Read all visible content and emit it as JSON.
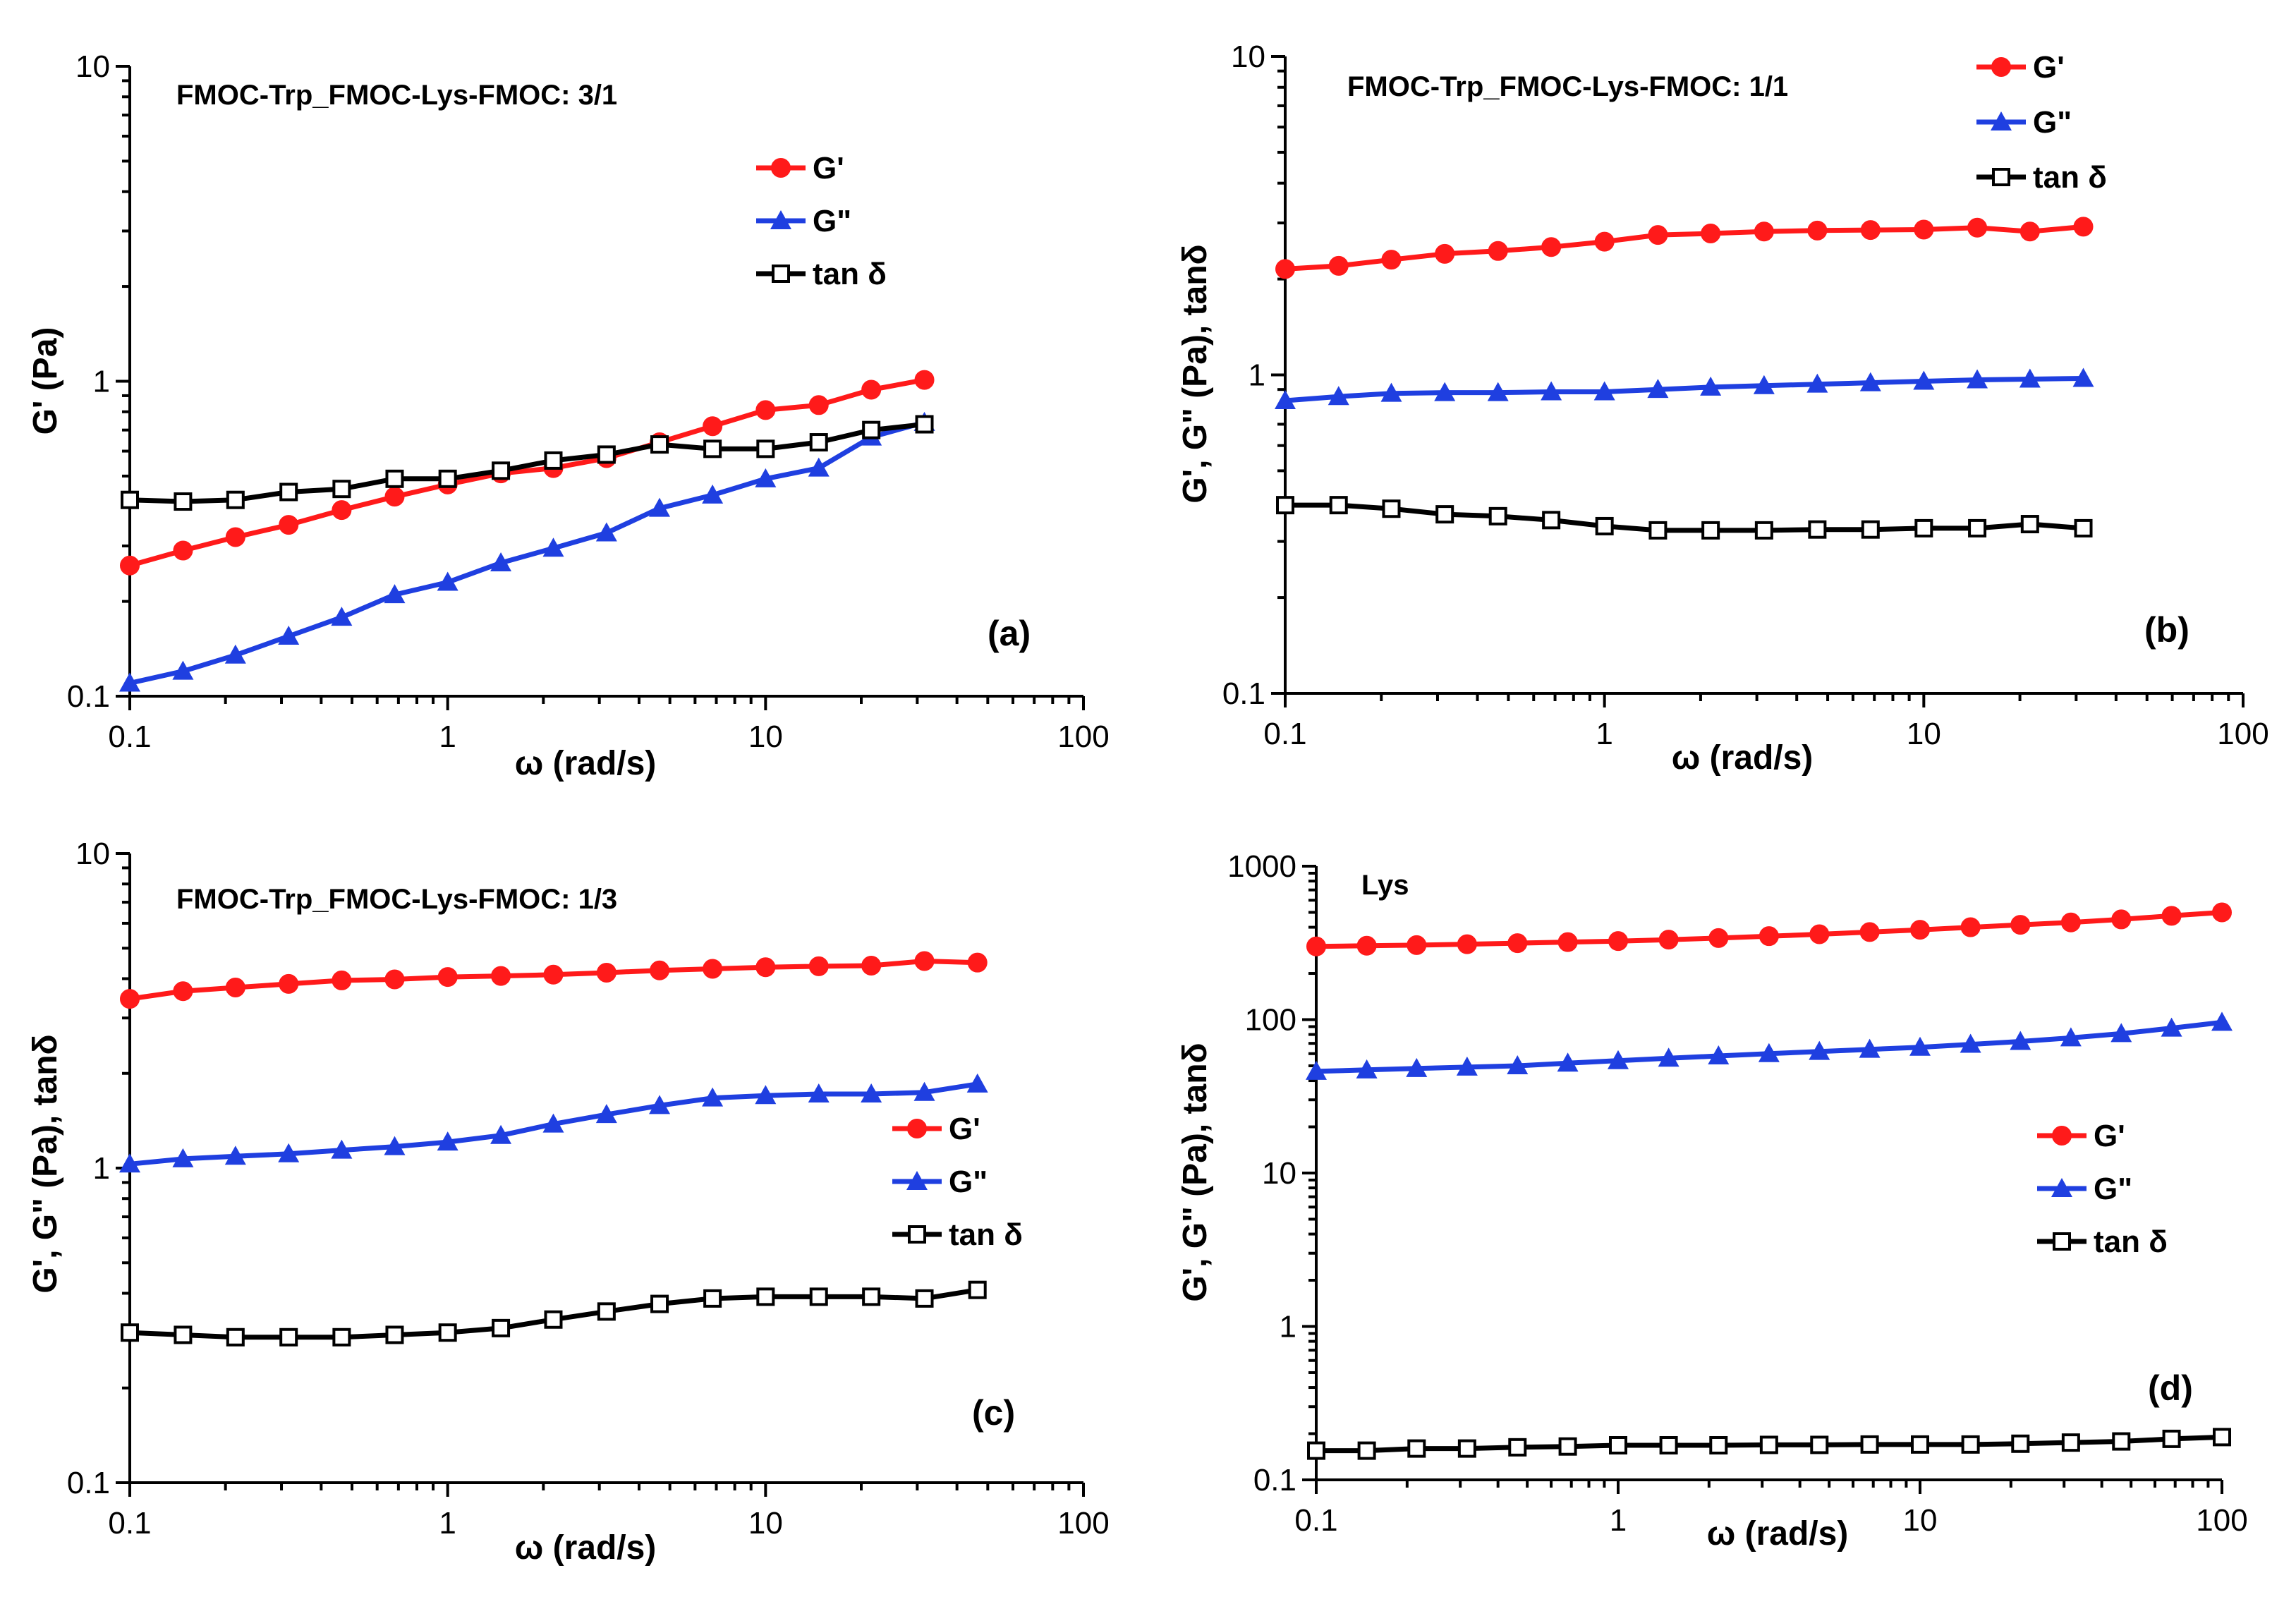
{
  "colors": {
    "g_prime": "#ff1a1a",
    "g_double_prime": "#1f3fe0",
    "tan_delta": "#000000"
  },
  "icons": {
    "g_prime": "filled-circle-marker",
    "g_double_prime": "filled-triangle-marker",
    "tan_delta": "open-square-marker"
  },
  "chart_data": [
    {
      "type": "line",
      "panel_label": "(a)",
      "title": "FMOC-Trp_FMOC-Lys-FMOC:  3/1",
      "xlabel": "ω (rad/s)",
      "ylabel": "G' (Pa)",
      "xscale": "log",
      "yscale": "log",
      "xlim": [
        0.1,
        100
      ],
      "ylim": [
        0.1,
        10
      ],
      "xticks": [
        "0.1",
        "1",
        "10",
        "100"
      ],
      "yticks": [
        "0.1",
        "1",
        "10"
      ],
      "legend_position": "top-right",
      "x": [
        0.1,
        0.147,
        0.215,
        0.316,
        0.464,
        0.681,
        1.0,
        1.47,
        2.15,
        3.16,
        4.64,
        6.81,
        10.0,
        14.7,
        21.5,
        31.6
      ],
      "series": [
        {
          "name": "G'",
          "marker": "circle",
          "values": [
            0.26,
            0.29,
            0.32,
            0.35,
            0.39,
            0.43,
            0.47,
            0.51,
            0.53,
            0.57,
            0.64,
            0.72,
            0.81,
            0.84,
            0.94,
            1.01
          ]
        },
        {
          "name": "G\"",
          "marker": "triangle",
          "values": [
            0.11,
            0.12,
            0.135,
            0.155,
            0.178,
            0.21,
            0.23,
            0.265,
            0.295,
            0.33,
            0.395,
            0.435,
            0.49,
            0.53,
            0.665,
            0.74
          ]
        },
        {
          "name": "tan δ",
          "marker": "square",
          "values": [
            0.42,
            0.415,
            0.42,
            0.445,
            0.455,
            0.49,
            0.49,
            0.52,
            0.56,
            0.585,
            0.63,
            0.61,
            0.61,
            0.64,
            0.7,
            0.73
          ]
        }
      ]
    },
    {
      "type": "line",
      "panel_label": "(b)",
      "title": "FMOC-Trp_FMOC-Lys-FMOC:  1/1",
      "xlabel": "ω (rad/s)",
      "ylabel": "G', G\" (Pa), tanδ",
      "xscale": "log",
      "yscale": "log",
      "xlim": [
        0.1,
        100
      ],
      "ylim": [
        0.1,
        10
      ],
      "xticks": [
        "0.1",
        "1",
        "10",
        "100"
      ],
      "yticks": [
        "0.1",
        "1",
        "10"
      ],
      "legend_position": "top-right",
      "x": [
        0.1,
        0.147,
        0.215,
        0.316,
        0.464,
        0.681,
        1.0,
        1.47,
        2.15,
        3.16,
        4.64,
        6.81,
        10.0,
        14.7,
        21.5,
        31.6
      ],
      "series": [
        {
          "name": "G'",
          "marker": "circle",
          "values": [
            2.15,
            2.2,
            2.3,
            2.4,
            2.45,
            2.52,
            2.62,
            2.75,
            2.78,
            2.82,
            2.84,
            2.85,
            2.86,
            2.9,
            2.82,
            2.92
          ]
        },
        {
          "name": "G\"",
          "marker": "triangle",
          "values": [
            0.83,
            0.855,
            0.875,
            0.88,
            0.88,
            0.885,
            0.885,
            0.9,
            0.915,
            0.925,
            0.935,
            0.945,
            0.955,
            0.965,
            0.97,
            0.975
          ]
        },
        {
          "name": "tan δ",
          "marker": "square",
          "values": [
            0.39,
            0.39,
            0.38,
            0.365,
            0.36,
            0.35,
            0.335,
            0.325,
            0.325,
            0.325,
            0.327,
            0.327,
            0.33,
            0.33,
            0.34,
            0.33
          ]
        }
      ]
    },
    {
      "type": "line",
      "panel_label": "(c)",
      "title": "FMOC-Trp_FMOC-Lys-FMOC:  1/3",
      "xlabel": "ω (rad/s)",
      "ylabel": "G', G\" (Pa), tanδ",
      "xscale": "log",
      "yscale": "log",
      "xlim": [
        0.1,
        100
      ],
      "ylim": [
        0.1,
        10
      ],
      "xticks": [
        "0.1",
        "1",
        "10",
        "100"
      ],
      "yticks": [
        "0.1",
        "1",
        "10"
      ],
      "legend_position": "right",
      "x": [
        0.1,
        0.147,
        0.215,
        0.316,
        0.464,
        0.681,
        1.0,
        1.47,
        2.15,
        3.16,
        4.64,
        6.81,
        10.0,
        14.7,
        21.5,
        31.6,
        46.4
      ],
      "series": [
        {
          "name": "G'",
          "marker": "circle",
          "values": [
            3.45,
            3.65,
            3.75,
            3.85,
            3.95,
            3.98,
            4.05,
            4.08,
            4.12,
            4.18,
            4.25,
            4.3,
            4.35,
            4.38,
            4.4,
            4.55,
            4.5
          ]
        },
        {
          "name": "G\"",
          "marker": "triangle",
          "values": [
            1.03,
            1.07,
            1.09,
            1.11,
            1.14,
            1.17,
            1.21,
            1.27,
            1.38,
            1.48,
            1.58,
            1.67,
            1.7,
            1.72,
            1.72,
            1.74,
            1.85
          ]
        },
        {
          "name": "tan δ",
          "marker": "square",
          "values": [
            0.3,
            0.295,
            0.29,
            0.29,
            0.29,
            0.295,
            0.3,
            0.31,
            0.33,
            0.35,
            0.37,
            0.385,
            0.39,
            0.39,
            0.39,
            0.385,
            0.41
          ]
        }
      ]
    },
    {
      "type": "line",
      "panel_label": "(d)",
      "title": "Lys",
      "xlabel": "ω (rad/s)",
      "ylabel": "G', G\" (Pa), tanδ",
      "xscale": "log",
      "yscale": "log",
      "xlim": [
        0.1,
        100
      ],
      "ylim": [
        0.1,
        1000
      ],
      "xticks": [
        "0.1",
        "1",
        "10",
        "100"
      ],
      "yticks": [
        "0.1",
        "1",
        "10",
        "100",
        "1000"
      ],
      "legend_position": "right",
      "x": [
        0.1,
        0.147,
        0.215,
        0.316,
        0.464,
        0.681,
        1.0,
        1.47,
        2.15,
        3.16,
        4.64,
        6.81,
        10.0,
        14.7,
        21.5,
        31.6,
        46.4,
        68.1,
        100.0
      ],
      "series": [
        {
          "name": "G'",
          "marker": "circle",
          "values": [
            300,
            303,
            306,
            310,
            315,
            320,
            325,
            332,
            340,
            350,
            360,
            372,
            385,
            400,
            415,
            430,
            450,
            475,
            500
          ]
        },
        {
          "name": "G\"",
          "marker": "triangle",
          "values": [
            46,
            47,
            48,
            49,
            50,
            52,
            54,
            56,
            58,
            60,
            62,
            64,
            66,
            69,
            72,
            76,
            81,
            88,
            96
          ]
        },
        {
          "name": "tan δ",
          "marker": "square",
          "values": [
            0.155,
            0.155,
            0.16,
            0.16,
            0.163,
            0.165,
            0.168,
            0.168,
            0.168,
            0.169,
            0.169,
            0.17,
            0.17,
            0.17,
            0.172,
            0.175,
            0.178,
            0.185,
            0.19
          ]
        }
      ]
    }
  ]
}
